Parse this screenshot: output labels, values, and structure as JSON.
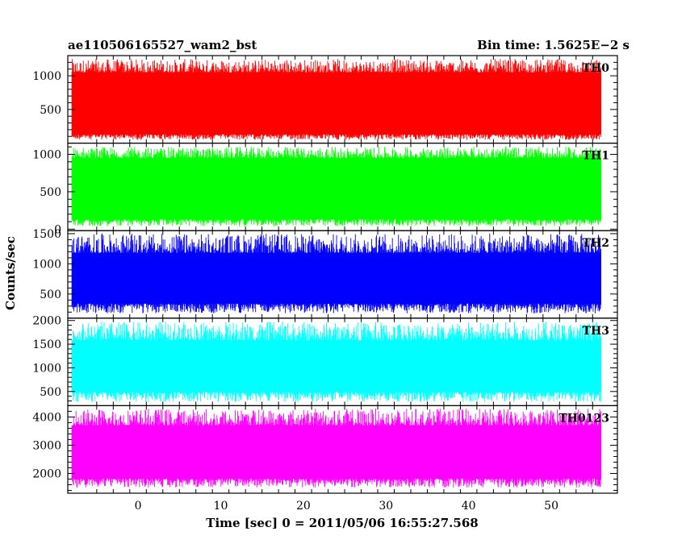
{
  "title_left": "ae110506165527_wam2_bst",
  "title_right": "Bin time: 1.5625E−2 s",
  "xlabel": "Time [sec] 0 = 2011/05/06 16:55:27.568",
  "ylabel": "Counts/sec",
  "chart_data": {
    "type": "line",
    "x_range": [
      -8.5,
      58
    ],
    "x_data_range": [
      -8,
      56
    ],
    "x_ticks": [
      0,
      10,
      20,
      30,
      40,
      50
    ],
    "x_tick_labels": [
      "0",
      "10",
      "20",
      "30",
      "40",
      "50"
    ],
    "series": [
      {
        "name": "TH0",
        "color": "#ff0000",
        "ylim": [
          0,
          1300
        ],
        "y_ticks": [
          500,
          1000
        ],
        "y_tick_labels": [
          "500",
          "1000"
        ],
        "typical_low": 130,
        "typical_high": 1050,
        "min": 50,
        "max": 1250
      },
      {
        "name": "TH1",
        "color": "#00ff00",
        "ylim": [
          -20,
          1150
        ],
        "y_ticks": [
          0,
          500,
          1000
        ],
        "y_tick_labels": [
          "0",
          "500",
          "1000"
        ],
        "typical_low": 130,
        "typical_high": 950,
        "min": 40,
        "max": 1100
      },
      {
        "name": "TH2",
        "color": "#0000ff",
        "ylim": [
          100,
          1550
        ],
        "y_ticks": [
          500,
          1000,
          1500
        ],
        "y_tick_labels": [
          "500",
          "1000",
          "1500"
        ],
        "typical_low": 340,
        "typical_high": 1180,
        "min": 180,
        "max": 1500
      },
      {
        "name": "TH3",
        "color": "#00ffff",
        "ylim": [
          200,
          2050
        ],
        "y_ticks": [
          500,
          1000,
          1500,
          2000
        ],
        "y_tick_labels": [
          "500",
          "1000",
          "1500",
          "2000"
        ],
        "typical_low": 490,
        "typical_high": 1580,
        "min": 280,
        "max": 1980
      },
      {
        "name": "TH0123",
        "color": "#ff00ff",
        "ylim": [
          1300,
          4400
        ],
        "y_ticks": [
          2000,
          3000,
          4000
        ],
        "y_tick_labels": [
          "2000",
          "3000",
          "4000"
        ],
        "typical_low": 1820,
        "typical_high": 3700,
        "min": 1500,
        "max": 4300
      }
    ]
  }
}
